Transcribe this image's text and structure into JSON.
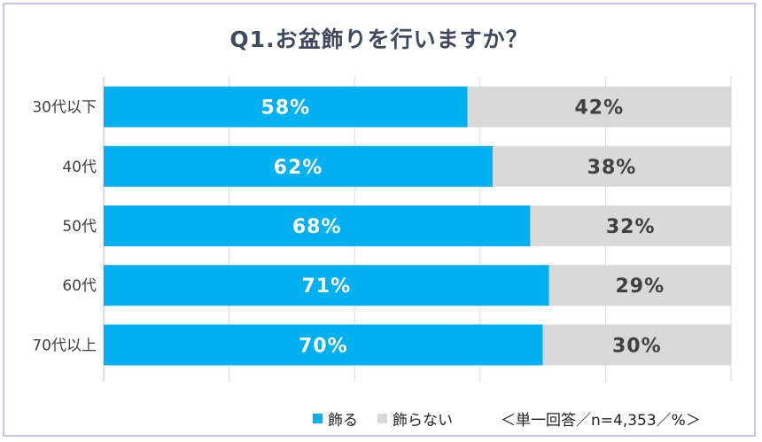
{
  "chart_data": {
    "type": "bar",
    "stacked": true,
    "orientation": "horizontal",
    "title": "Q1.お盆飾りを行いますか？",
    "categories": [
      "30代以下",
      "40代",
      "50代",
      "60代",
      "70代以上"
    ],
    "series": [
      {
        "name": "飾る",
        "values": [
          58,
          62,
          68,
          71,
          70
        ],
        "labels": [
          "58%",
          "62%",
          "68%",
          "71%",
          "70%"
        ],
        "color": "#00b0f0",
        "label_color": "#ffffff"
      },
      {
        "name": "飾らない",
        "values": [
          42,
          38,
          32,
          29,
          30
        ],
        "labels": [
          "42%",
          "38%",
          "32%",
          "29%",
          "30%"
        ],
        "color": "#d9d9d9",
        "label_color": "#404040"
      }
    ],
    "xlim": [
      0,
      100
    ],
    "grid": true,
    "legend_position": "bottom"
  },
  "note": "＜単一回答／n=4,353／%＞",
  "frame_color": "#c8c2ee"
}
